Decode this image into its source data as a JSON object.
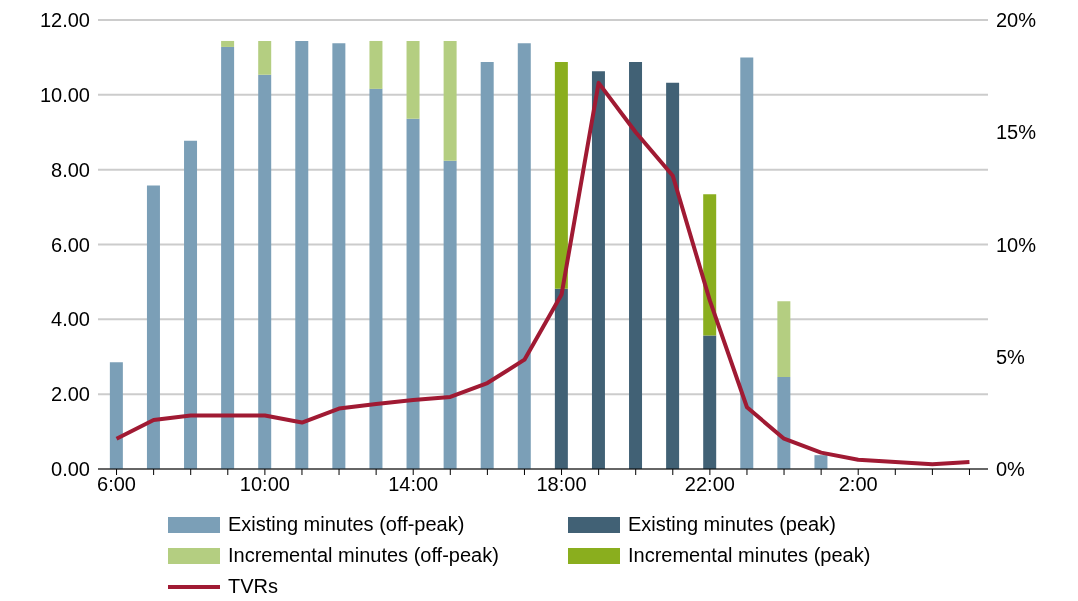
{
  "chart_data": {
    "type": "bar",
    "stacked": true,
    "categories": [
      "6:00",
      null,
      null,
      null,
      "10:00",
      null,
      null,
      null,
      "14:00",
      null,
      null,
      null,
      "18:00",
      null,
      null,
      null,
      "22:00",
      null,
      null,
      null,
      "2:00",
      null,
      null,
      null
    ],
    "series": [
      {
        "name": "Existing minutes (off-peak)",
        "color": "#7b9fb7",
        "values": [
          2.85,
          7.58,
          8.77,
          11.28,
          10.54,
          11.44,
          11.38,
          10.16,
          9.36,
          8.24,
          10.88,
          11.38,
          null,
          null,
          null,
          null,
          null,
          11.0,
          2.46,
          0.37,
          null,
          null,
          null,
          null
        ]
      },
      {
        "name": "Existing minutes (peak)",
        "color": "#416175",
        "values": [
          null,
          null,
          null,
          null,
          null,
          null,
          null,
          null,
          null,
          null,
          null,
          null,
          4.82,
          10.63,
          10.88,
          10.32,
          3.57,
          null,
          null,
          null,
          null,
          null,
          null,
          null
        ]
      },
      {
        "name": "Incremental minutes (off-peak)",
        "color": "#b4ce81",
        "values": [
          null,
          null,
          null,
          0.16,
          0.9,
          null,
          null,
          1.28,
          2.08,
          3.2,
          null,
          null,
          null,
          null,
          null,
          null,
          null,
          null,
          2.02,
          null,
          null,
          null,
          null,
          null
        ]
      },
      {
        "name": "Incremental minutes (peak)",
        "color": "#8aae1e",
        "values": [
          null,
          null,
          null,
          null,
          null,
          null,
          null,
          null,
          null,
          null,
          null,
          null,
          6.06,
          null,
          null,
          null,
          3.77,
          null,
          null,
          null,
          null,
          null,
          null,
          null
        ]
      },
      {
        "name": "TVRs",
        "type": "line",
        "axis": "y2",
        "color": "#a01a33",
        "marker": "none",
        "values": [
          1.35,
          2.18,
          2.38,
          2.38,
          2.38,
          2.07,
          2.69,
          2.9,
          3.07,
          3.21,
          3.83,
          4.87,
          7.77,
          17.2,
          15.0,
          13.06,
          7.5,
          2.75,
          1.35,
          0.73,
          0.41,
          0.31,
          0.21,
          0.31
        ]
      }
    ],
    "ylim": [
      0,
      12
    ],
    "yticks": [
      {
        "value": 0,
        "label": "0.00"
      },
      {
        "value": 2,
        "label": "2.00"
      },
      {
        "value": 4,
        "label": "4.00"
      },
      {
        "value": 6,
        "label": "6.00"
      },
      {
        "value": 8,
        "label": "8.00"
      },
      {
        "value": 10,
        "label": "10.00"
      },
      {
        "value": 12,
        "label": "12.00"
      }
    ],
    "y2lim": [
      0,
      20
    ],
    "y2ticks": [
      {
        "value": 0,
        "label": "0%"
      },
      {
        "value": 5,
        "label": "5%"
      },
      {
        "value": 10,
        "label": "10%"
      },
      {
        "value": 15,
        "label": "15%"
      },
      {
        "value": 20,
        "label": "20%"
      }
    ],
    "grid": "y",
    "legend": "bottom"
  }
}
